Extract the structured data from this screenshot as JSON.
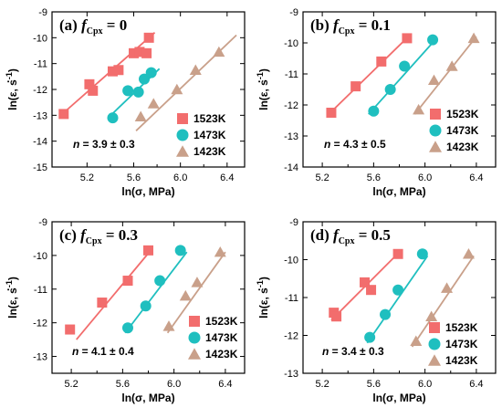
{
  "chart_data": [
    {
      "type": "scatter",
      "panel_letter": "(a)",
      "title_f": "f",
      "title_sub": "Cpx",
      "title_eq": " = 0",
      "n_label": "n",
      "n_value": " = 3.9 ± 0.3",
      "xlabel": "ln(σ, MPa)",
      "ylabel_prefix": "ln(",
      "ylabel_eps": "ε",
      "ylabel_suffix": ", s",
      "ylabel_exp": "-1",
      "ylabel_close": ")",
      "xlim": [
        4.9,
        6.55
      ],
      "ylim": [
        -15,
        -9
      ],
      "xticks": [
        "5.2",
        "5.6",
        "6.0",
        "6.4"
      ],
      "yticks": [
        "-15",
        "-14",
        "-13",
        "-12",
        "-11",
        "-10",
        "-9"
      ],
      "series": [
        {
          "name": "1523K",
          "marker": "square",
          "color": "#f26d6d",
          "x": [
            5.0,
            5.22,
            5.25,
            5.42,
            5.47,
            5.6,
            5.65,
            5.71,
            5.73
          ],
          "y": [
            -12.95,
            -11.8,
            -12.05,
            -11.3,
            -11.25,
            -10.6,
            -10.55,
            -10.6,
            -10.0
          ],
          "fit": {
            "x": [
              5.0,
              5.78
            ],
            "y": [
              -12.9,
              -9.8
            ]
          }
        },
        {
          "name": "1473K",
          "marker": "circle",
          "color": "#1fbfbf",
          "x": [
            5.42,
            5.55,
            5.64,
            5.69,
            5.75
          ],
          "y": [
            -13.1,
            -12.05,
            -12.1,
            -11.6,
            -11.35
          ],
          "fit": {
            "x": [
              5.38,
              5.82
            ],
            "y": [
              -13.1,
              -11.2
            ]
          }
        },
        {
          "name": "1423K",
          "marker": "triangle",
          "color": "#c9a08a",
          "x": [
            5.66,
            5.77,
            5.97,
            6.13,
            6.33
          ],
          "y": [
            -13.05,
            -12.55,
            -12.0,
            -11.25,
            -10.55
          ],
          "fit": {
            "x": [
              5.62,
              6.48
            ],
            "y": [
              -13.6,
              -9.9
            ]
          }
        }
      ]
    },
    {
      "type": "scatter",
      "panel_letter": "(b)",
      "title_f": "f",
      "title_sub": "Cpx",
      "title_eq": " = 0.1",
      "n_label": "n",
      "n_value": " = 4.3 ± 0.5",
      "xlabel": "ln(σ, MPa)",
      "ylabel_prefix": "ln(",
      "ylabel_eps": "ε",
      "ylabel_suffix": ", s",
      "ylabel_exp": "-1",
      "ylabel_close": ")",
      "xlim": [
        5.05,
        6.55
      ],
      "ylim": [
        -14,
        -9
      ],
      "xticks": [
        "5.2",
        "5.6",
        "6.0",
        "6.4"
      ],
      "yticks": [
        "-14",
        "-13",
        "-12",
        "-11",
        "-10",
        "-9"
      ],
      "series": [
        {
          "name": "1523K",
          "marker": "square",
          "color": "#f26d6d",
          "x": [
            5.27,
            5.46,
            5.66,
            5.86
          ],
          "y": [
            -12.25,
            -11.4,
            -10.6,
            -9.85
          ],
          "fit": {
            "x": [
              5.25,
              5.87
            ],
            "y": [
              -12.3,
              -9.8
            ]
          }
        },
        {
          "name": "1473K",
          "marker": "circle",
          "color": "#1fbfbf",
          "x": [
            5.6,
            5.73,
            5.84,
            6.06
          ],
          "y": [
            -12.2,
            -11.5,
            -10.75,
            -9.9
          ],
          "fit": {
            "x": [
              5.56,
              6.08
            ],
            "y": [
              -12.3,
              -9.9
            ]
          }
        },
        {
          "name": "1423K",
          "marker": "triangle",
          "color": "#c9a08a",
          "x": [
            5.95,
            6.07,
            6.21,
            6.38
          ],
          "y": [
            -12.15,
            -11.2,
            -10.75,
            -9.85
          ],
          "fit": {
            "x": [
              5.92,
              6.4
            ],
            "y": [
              -12.3,
              -9.8
            ]
          }
        }
      ]
    },
    {
      "type": "scatter",
      "panel_letter": "(c)",
      "title_f": "f",
      "title_sub": "Cpx",
      "title_eq": " = 0.3",
      "n_label": "n",
      "n_value": " = 4.1 ± 0.4",
      "xlabel": "ln(σ, MPa)",
      "ylabel_prefix": "ln(",
      "ylabel_eps": "ε",
      "ylabel_suffix": ", s",
      "ylabel_exp": "-1",
      "ylabel_close": ")",
      "xlim": [
        5.05,
        6.55
      ],
      "ylim": [
        -13.5,
        -9
      ],
      "xticks": [
        "5.2",
        "5.6",
        "6.0",
        "6.4"
      ],
      "yticks": [
        "-13",
        "-12",
        "-11",
        "-10",
        "-9"
      ],
      "series": [
        {
          "name": "1523K",
          "marker": "square",
          "color": "#f26d6d",
          "x": [
            5.19,
            5.44,
            5.64,
            5.8
          ],
          "y": [
            -12.2,
            -11.4,
            -10.75,
            -9.85
          ],
          "fit": {
            "x": [
              5.24,
              5.83
            ],
            "y": [
              -12.5,
              -9.8
            ]
          }
        },
        {
          "name": "1473K",
          "marker": "circle",
          "color": "#1fbfbf",
          "x": [
            5.64,
            5.78,
            5.89,
            6.05
          ],
          "y": [
            -12.15,
            -11.5,
            -10.75,
            -9.85
          ],
          "fit": {
            "x": [
              5.62,
              6.1
            ],
            "y": [
              -12.3,
              -9.9
            ]
          }
        },
        {
          "name": "1423K",
          "marker": "triangle",
          "color": "#c9a08a",
          "x": [
            5.96,
            6.09,
            6.18,
            6.36
          ],
          "y": [
            -12.1,
            -11.2,
            -10.8,
            -9.9
          ],
          "fit": {
            "x": [
              5.95,
              6.4
            ],
            "y": [
              -12.3,
              -9.9
            ]
          }
        }
      ]
    },
    {
      "type": "scatter",
      "panel_letter": "(d)",
      "title_f": "f",
      "title_sub": "Cpx",
      "title_eq": " = 0.5",
      "n_label": "n",
      "n_value": " = 3.4 ± 0.3",
      "xlabel": "ln(σ, MPa)",
      "ylabel_prefix": "ln(",
      "ylabel_eps": "ε",
      "ylabel_suffix": ", s",
      "ylabel_exp": "-1",
      "ylabel_close": ")",
      "xlim": [
        5.05,
        6.55
      ],
      "ylim": [
        -13,
        -9
      ],
      "xticks": [
        "5.2",
        "5.6",
        "6.0",
        "6.4"
      ],
      "yticks": [
        "-13",
        "-12",
        "-11",
        "-10",
        "-9"
      ],
      "series": [
        {
          "name": "1523K",
          "marker": "square",
          "color": "#f26d6d",
          "x": [
            5.29,
            5.31,
            5.53,
            5.58,
            5.79
          ],
          "y": [
            -11.4,
            -11.5,
            -10.6,
            -10.8,
            -9.85
          ],
          "fit": {
            "x": [
              5.27,
              5.8
            ],
            "y": [
              -11.6,
              -9.8
            ]
          }
        },
        {
          "name": "1473K",
          "marker": "circle",
          "color": "#1fbfbf",
          "x": [
            5.57,
            5.69,
            5.79,
            5.98
          ],
          "y": [
            -12.05,
            -11.45,
            -10.8,
            -9.85
          ],
          "fit": {
            "x": [
              5.55,
              6.02
            ],
            "y": [
              -12.2,
              -9.9
            ]
          }
        },
        {
          "name": "1423K",
          "marker": "triangle",
          "color": "#c9a08a",
          "x": [
            5.93,
            6.05,
            6.17,
            6.34
          ],
          "y": [
            -12.15,
            -11.5,
            -10.75,
            -9.85
          ],
          "fit": {
            "x": [
              5.9,
              6.38
            ],
            "y": [
              -12.3,
              -9.9
            ]
          }
        }
      ]
    }
  ]
}
